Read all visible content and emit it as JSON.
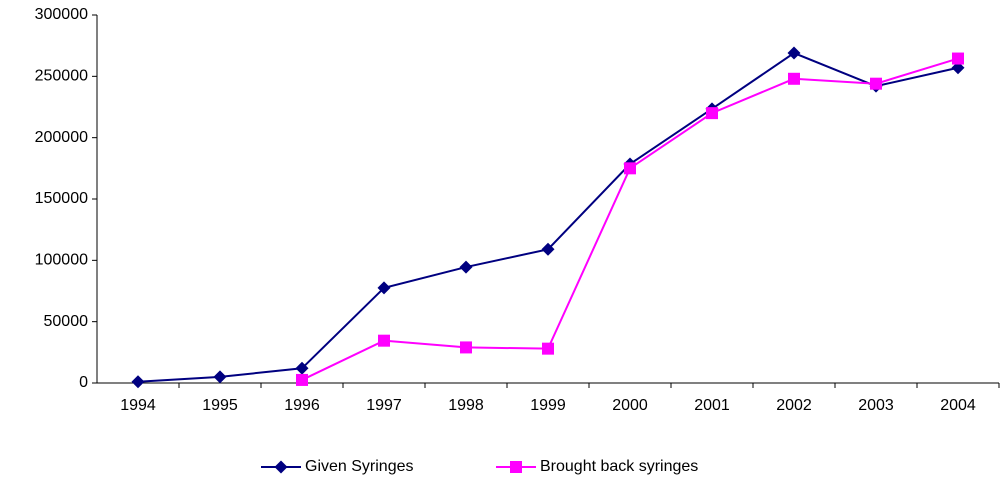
{
  "chart_data": {
    "type": "line",
    "categories": [
      "1994",
      "1995",
      "1996",
      "1997",
      "1998",
      "1999",
      "2000",
      "2001",
      "2002",
      "2003",
      "2004"
    ],
    "series": [
      {
        "name": "Given Syringes",
        "color": "#000080",
        "marker": "diamond",
        "values": [
          1000,
          5000,
          12000,
          77500,
          94500,
          109000,
          178500,
          223500,
          269000,
          242000,
          257000
        ]
      },
      {
        "name": "Brought back syringes",
        "color": "#ff00ff",
        "marker": "square",
        "values": [
          null,
          null,
          2500,
          34500,
          29000,
          28000,
          175000,
          220000,
          248000,
          244000,
          264500
        ]
      }
    ],
    "ylim": [
      0,
      300000
    ],
    "yticks": [
      0,
      50000,
      100000,
      150000,
      200000,
      250000,
      300000
    ],
    "grid": false,
    "legend": "bottom"
  }
}
